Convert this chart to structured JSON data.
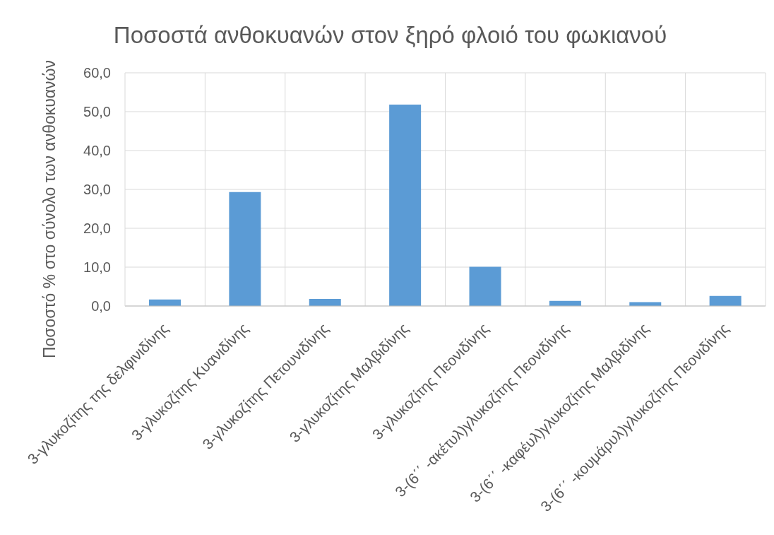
{
  "chart_data": {
    "type": "bar",
    "title": "Ποσοστά ανθοκυανών στον ξηρό φλοιό του φωκιανού",
    "ylabel": "Ποσοστό % στο σύνολο των ανθοκυανών",
    "categories": [
      "3-γλυκοζίτης της δελφινιδίνης",
      "3-γλυκοζίτης Κυανιδίνης",
      "3-γλυκοζίτης Πετουνιδίνης",
      "3-γλυκοζίτης Μαλβιδίνης",
      "3-γλυκοζίτης Πεονιδίνης",
      "3-(6΄΄ -ακέτυλ)γλυκοζίτης Πεονιδίνης",
      "3-(6΄΄ -καφέυλ)γλυκοζίτης Μαλβιδίνης",
      "3-(6΄΄ -κουμάρυλ)γλυκοζίτης Πεονιδίνης"
    ],
    "values": [
      1.7,
      29.3,
      1.8,
      51.8,
      10.1,
      1.3,
      1.0,
      2.6
    ],
    "color": "#5b9bd5",
    "ylim": [
      0,
      60
    ],
    "yticks": [
      {
        "value": 0,
        "label": "0,0"
      },
      {
        "value": 10,
        "label": "10,0"
      },
      {
        "value": 20,
        "label": "20,0"
      },
      {
        "value": 30,
        "label": "30,0"
      },
      {
        "value": 40,
        "label": "40,0"
      },
      {
        "value": 50,
        "label": "50,0"
      },
      {
        "value": 60,
        "label": "60,0"
      }
    ],
    "grid": true
  }
}
